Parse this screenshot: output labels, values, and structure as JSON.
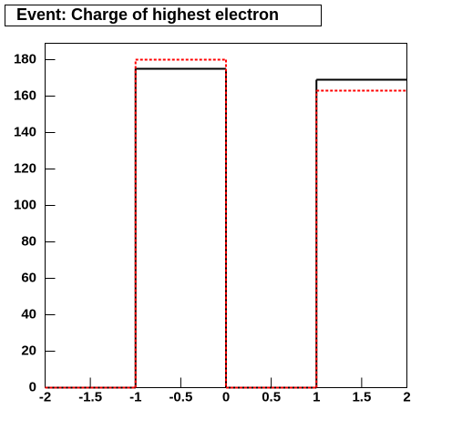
{
  "chart_data": {
    "type": "histogram",
    "title": "Event: Charge of highest electron",
    "bins": [
      -2,
      -1,
      0,
      1,
      2
    ],
    "series": [
      {
        "color": "#000000",
        "values": [
          0,
          175,
          0,
          169
        ]
      },
      {
        "color": "#ff0000",
        "values": [
          0,
          180,
          0,
          163
        ]
      }
    ],
    "xlim": [
      -2,
      2
    ],
    "xticks": [
      -2,
      -1.5,
      -1,
      -0.5,
      0,
      0.5,
      1,
      1.5,
      2
    ],
    "ylim": [
      0,
      189
    ],
    "yticks": [
      0,
      20,
      40,
      60,
      80,
      100,
      120,
      140,
      160,
      180
    ]
  }
}
